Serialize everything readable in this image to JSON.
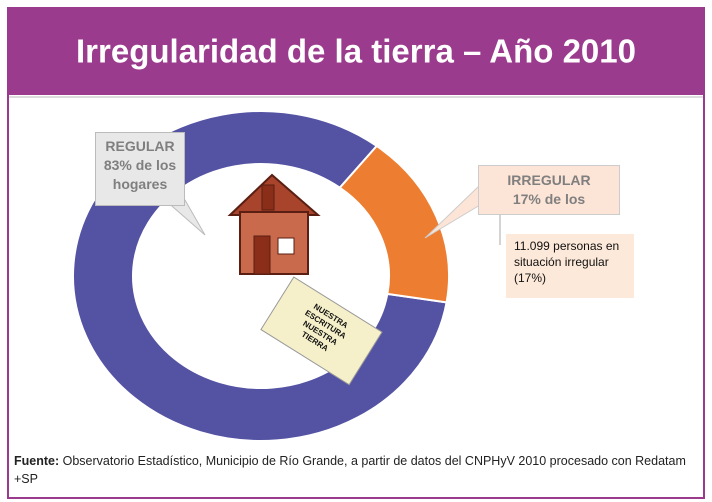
{
  "chart_data": {
    "type": "donut",
    "title": "Irregularidad de la tierra – Año 2010",
    "categories": [
      "REGULAR",
      "IRREGULAR"
    ],
    "values": [
      83,
      17
    ],
    "value_labels": [
      "83% de los hogares",
      "17% de los"
    ],
    "colors": [
      "#5452a3",
      "#ed7d31"
    ],
    "annotation": "11.099 personas en situación irregular (17%)",
    "illustration_text": [
      "NUESTRA",
      "ESCRITURA",
      "NUESTRA",
      "TIERRA"
    ],
    "source_label": "Fuente:",
    "source": "Observatorio Estadístico, Municipio de Río Grande, a partir de datos del CNPHyV 2010 procesado con Redatam +SP"
  }
}
